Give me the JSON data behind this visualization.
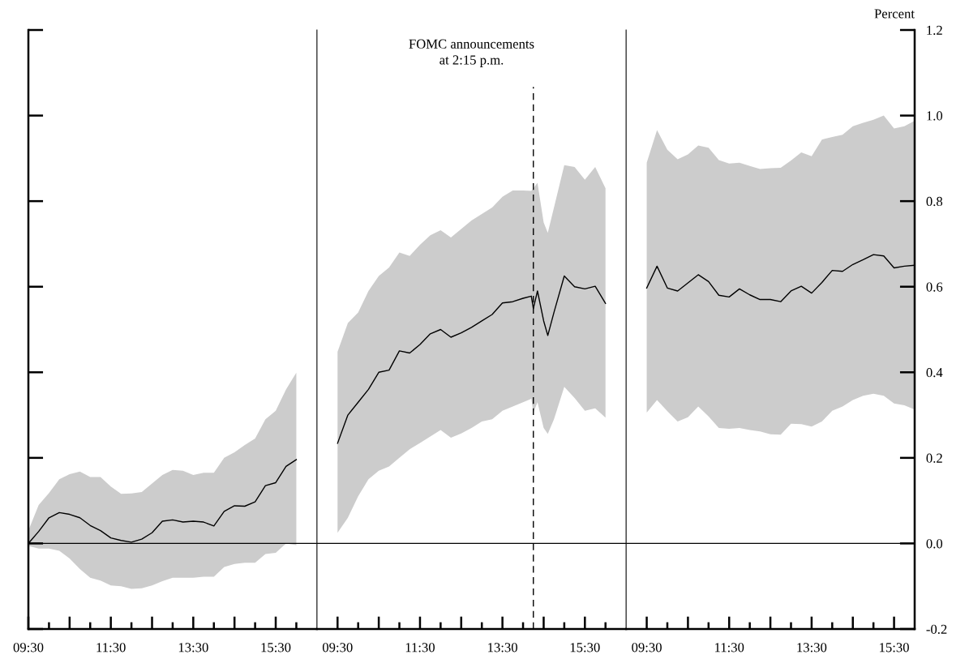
{
  "chart_data": [
    {
      "type": "line",
      "tick_labels": "x",
      "xlim": [
        9.5,
        16.5
      ],
      "ylim": [
        -0.2,
        1.2
      ],
      "yticks": [
        -0.2,
        0.0,
        0.2,
        0.4,
        0.6,
        0.8,
        1.0,
        1.2
      ],
      "grid": false,
      "legend": false,
      "xticks": [
        {
          "value": 9.5,
          "label": "09:30"
        },
        {
          "value": 10.0,
          "label": null
        },
        {
          "value": 10.5,
          "label": null
        },
        {
          "value": 11.0,
          "label": null
        },
        {
          "value": 11.5,
          "label": "11:30"
        },
        {
          "value": 12.0,
          "label": null
        },
        {
          "value": 12.5,
          "label": null
        },
        {
          "value": 13.0,
          "label": null
        },
        {
          "value": 13.5,
          "label": "13:30"
        },
        {
          "value": 14.0,
          "label": null
        },
        {
          "value": 14.5,
          "label": null
        },
        {
          "value": 15.0,
          "label": null
        },
        {
          "value": 15.5,
          "label": "15:30"
        },
        {
          "value": 16.0,
          "label": null
        }
      ],
      "ref_lines": [
        {
          "axis": "y",
          "value": 0,
          "color": "#000000",
          "line_style": "solid"
        }
      ],
      "series": [
        {
          "color": "#000000",
          "x": [
            9.5,
            9.75,
            10.0,
            10.25,
            10.5,
            10.75,
            11.0,
            11.25,
            11.5,
            11.75,
            12.0,
            12.25,
            12.5,
            12.75,
            13.0,
            13.25,
            13.5,
            13.75,
            14.0,
            14.25,
            14.5,
            14.75,
            15.0,
            15.25,
            15.5,
            15.75,
            16.0
          ],
          "values": [
            0.0,
            0.028,
            0.06,
            0.072,
            0.068,
            0.06,
            0.042,
            0.03,
            0.013,
            0.007,
            0.003,
            0.01,
            0.025,
            0.052,
            0.055,
            0.05,
            0.052,
            0.05,
            0.041,
            0.075,
            0.088,
            0.087,
            0.097,
            0.135,
            0.142,
            0.18,
            0.196
          ],
          "upper": [
            0.03,
            0.09,
            0.118,
            0.15,
            0.162,
            0.168,
            0.155,
            0.155,
            0.133,
            0.116,
            0.117,
            0.12,
            0.14,
            0.16,
            0.172,
            0.17,
            0.16,
            0.165,
            0.165,
            0.2,
            0.213,
            0.23,
            0.245,
            0.29,
            0.31,
            0.36,
            0.399
          ],
          "lower": [
            -0.006,
            -0.012,
            -0.012,
            -0.017,
            -0.035,
            -0.06,
            -0.08,
            -0.087,
            -0.098,
            -0.1,
            -0.106,
            -0.105,
            -0.098,
            -0.088,
            -0.08,
            -0.08,
            -0.08,
            -0.078,
            -0.078,
            -0.055,
            -0.048,
            -0.045,
            -0.045,
            -0.025,
            -0.022,
            0.0,
            -0.004
          ]
        }
      ]
    },
    {
      "type": "line",
      "tick_labels": "x",
      "xlim": [
        9.0,
        16.5
      ],
      "ylim": [
        -0.2,
        1.2
      ],
      "yticks": [
        -0.2,
        0.0,
        0.2,
        0.4,
        0.6,
        0.8,
        1.0,
        1.2
      ],
      "grid": false,
      "legend": false,
      "annotations": [
        "FOMC announcements\nat 2:15 p.m."
      ],
      "xticks": [
        {
          "value": 9.5,
          "label": "09:30"
        },
        {
          "value": 10.0,
          "label": null
        },
        {
          "value": 10.5,
          "label": null
        },
        {
          "value": 11.0,
          "label": null
        },
        {
          "value": 11.5,
          "label": "11:30"
        },
        {
          "value": 12.0,
          "label": null
        },
        {
          "value": 12.5,
          "label": null
        },
        {
          "value": 13.0,
          "label": null
        },
        {
          "value": 13.5,
          "label": "13:30"
        },
        {
          "value": 14.0,
          "label": null
        },
        {
          "value": 14.5,
          "label": null
        },
        {
          "value": 15.0,
          "label": null
        },
        {
          "value": 15.5,
          "label": "15:30"
        },
        {
          "value": 16.0,
          "label": null
        }
      ],
      "ref_lines": [
        {
          "axis": "y",
          "value": 0,
          "color": "#000000",
          "line_style": "solid"
        },
        {
          "axis": "x",
          "value": 14.25,
          "color": "#000000",
          "line_style": "dashed"
        }
      ],
      "series": [
        {
          "color": "#000000",
          "x": [
            9.5,
            9.75,
            10.0,
            10.25,
            10.5,
            10.75,
            11.0,
            11.25,
            11.5,
            11.75,
            12.0,
            12.25,
            12.5,
            12.75,
            13.0,
            13.25,
            13.5,
            13.75,
            14.0,
            14.2,
            14.25,
            14.35,
            14.5,
            14.6,
            14.75,
            15.0,
            15.25,
            15.5,
            15.75,
            16.0
          ],
          "values": [
            0.234,
            0.3,
            0.33,
            0.36,
            0.4,
            0.405,
            0.45,
            0.445,
            0.465,
            0.49,
            0.5,
            0.482,
            0.492,
            0.505,
            0.52,
            0.535,
            0.562,
            0.565,
            0.573,
            0.578,
            0.549,
            0.59,
            0.52,
            0.486,
            0.54,
            0.625,
            0.6,
            0.595,
            0.601,
            0.561
          ],
          "upper": [
            0.448,
            0.515,
            0.54,
            0.59,
            0.625,
            0.645,
            0.68,
            0.672,
            0.698,
            0.72,
            0.732,
            0.715,
            0.735,
            0.755,
            0.77,
            0.785,
            0.81,
            0.825,
            0.825,
            0.824,
            0.83,
            0.843,
            0.75,
            0.726,
            0.785,
            0.884,
            0.88,
            0.85,
            0.88,
            0.83
          ],
          "lower": [
            0.025,
            0.06,
            0.11,
            0.15,
            0.17,
            0.18,
            0.2,
            0.22,
            0.235,
            0.25,
            0.265,
            0.247,
            0.257,
            0.27,
            0.285,
            0.29,
            0.31,
            0.32,
            0.33,
            0.338,
            0.306,
            0.33,
            0.27,
            0.256,
            0.29,
            0.366,
            0.34,
            0.31,
            0.316,
            0.294
          ]
        }
      ]
    },
    {
      "type": "line",
      "ylabel": "Percent",
      "xlim": [
        9.0,
        16.0
      ],
      "ylim": [
        -0.2,
        1.2
      ],
      "yticks": [
        {
          "value": -0.2,
          "label": "-0.2"
        },
        {
          "value": 0,
          "label": "0.0"
        },
        {
          "value": 0.2,
          "label": "0.2"
        },
        {
          "value": 0.4,
          "label": "0.4"
        },
        {
          "value": 0.6,
          "label": "0.6"
        },
        {
          "value": 0.8,
          "label": "0.8"
        },
        {
          "value": 1,
          "label": "1.0"
        },
        {
          "value": 1.2,
          "label": "1.2"
        }
      ],
      "grid": false,
      "legend": false,
      "xticks": [
        {
          "value": 9.5,
          "label": "09:30"
        },
        {
          "value": 10.0,
          "label": null
        },
        {
          "value": 10.5,
          "label": null
        },
        {
          "value": 11.0,
          "label": null
        },
        {
          "value": 11.5,
          "label": "11:30"
        },
        {
          "value": 12.0,
          "label": null
        },
        {
          "value": 12.5,
          "label": null
        },
        {
          "value": 13.0,
          "label": null
        },
        {
          "value": 13.5,
          "label": "13:30"
        },
        {
          "value": 14.0,
          "label": null
        },
        {
          "value": 14.5,
          "label": null
        },
        {
          "value": 15.0,
          "label": null
        },
        {
          "value": 15.5,
          "label": "15:30"
        }
      ],
      "ref_lines": [
        {
          "axis": "y",
          "value": 0,
          "color": "#000000",
          "line_style": "solid"
        }
      ],
      "series": [
        {
          "color": "#000000",
          "x": [
            9.5,
            9.75,
            10.0,
            10.25,
            10.5,
            10.75,
            11.0,
            11.25,
            11.5,
            11.75,
            12.0,
            12.25,
            12.5,
            12.75,
            13.0,
            13.25,
            13.5,
            13.75,
            14.0,
            14.25,
            14.5,
            14.75,
            15.0,
            15.25,
            15.5,
            15.75,
            16.0
          ],
          "values": [
            0.597,
            0.648,
            0.597,
            0.59,
            0.609,
            0.628,
            0.612,
            0.58,
            0.576,
            0.595,
            0.581,
            0.57,
            0.57,
            0.565,
            0.59,
            0.601,
            0.585,
            0.61,
            0.638,
            0.636,
            0.652,
            0.663,
            0.675,
            0.672,
            0.644,
            0.648,
            0.65
          ],
          "upper": [
            0.89,
            0.966,
            0.92,
            0.898,
            0.909,
            0.93,
            0.925,
            0.896,
            0.888,
            0.89,
            0.882,
            0.875,
            0.877,
            0.878,
            0.895,
            0.914,
            0.905,
            0.944,
            0.95,
            0.955,
            0.975,
            0.983,
            0.99,
            1.0,
            0.97,
            0.975,
            0.988
          ],
          "lower": [
            0.306,
            0.335,
            0.309,
            0.285,
            0.295,
            0.32,
            0.297,
            0.27,
            0.268,
            0.27,
            0.265,
            0.262,
            0.255,
            0.254,
            0.28,
            0.279,
            0.273,
            0.285,
            0.31,
            0.32,
            0.335,
            0.345,
            0.35,
            0.345,
            0.327,
            0.323,
            0.313
          ]
        }
      ]
    }
  ]
}
